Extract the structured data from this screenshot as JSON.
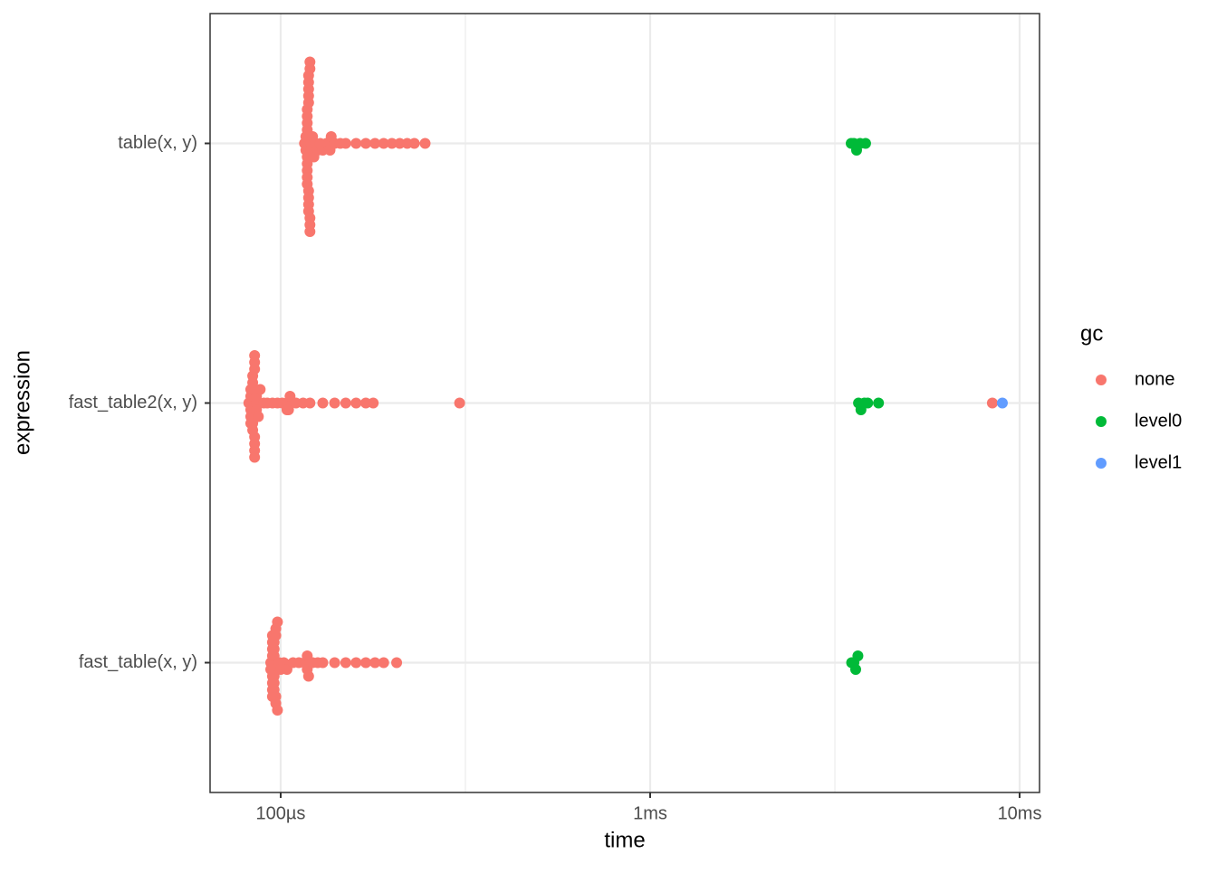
{
  "chart_data": {
    "type": "scatter",
    "x_label": "time",
    "y_label": "expression",
    "categories": [
      "table(x, y)",
      "fast_table2(x, y)",
      "fast_table(x, y)"
    ],
    "xlim": [
      64.4,
      11320
    ],
    "log_x": true,
    "xticks": [
      {
        "value": 100,
        "label": "100µs"
      },
      {
        "value": 1000,
        "label": "1ms"
      },
      {
        "value": 10000,
        "label": "10ms"
      }
    ],
    "grid": true,
    "legend_title": "gc",
    "legend_position": "right",
    "series": [
      {
        "name": "none",
        "color": "#F8766D",
        "values": [
          [
            116,
            117,
            117,
            117,
            118,
            118,
            118,
            118,
            118,
            118,
            118,
            118,
            118,
            119,
            119,
            119,
            119,
            119,
            119,
            119,
            119,
            119,
            120,
            120,
            120,
            120,
            120,
            121,
            121,
            122,
            123,
            124,
            126,
            128,
            130,
            133,
            136,
            136,
            137,
            140,
            145,
            150,
            160,
            170,
            180,
            190,
            200,
            210,
            220,
            230,
            246
          ],
          [
            82,
            83,
            83,
            83,
            83,
            83,
            84,
            84,
            84,
            84,
            84,
            84,
            84,
            84,
            84,
            85,
            85,
            85,
            85,
            85,
            85,
            85,
            86,
            86,
            86,
            87,
            88,
            90,
            92,
            95,
            98,
            101,
            104,
            104,
            105,
            105,
            106,
            110,
            115,
            120,
            130,
            140,
            150,
            160,
            170,
            178,
            305,
            8437
          ],
          [
            94,
            94,
            95,
            95,
            95,
            95,
            95,
            95,
            95,
            95,
            96,
            96,
            96,
            96,
            96,
            96,
            96,
            96,
            97,
            97,
            97,
            97,
            98,
            98,
            99,
            100,
            102,
            104,
            108,
            112,
            116,
            117,
            118,
            118,
            119,
            122,
            126,
            130,
            140,
            150,
            160,
            170,
            180,
            190,
            206
          ]
        ]
      },
      {
        "name": "level0",
        "color": "#00BA38",
        "values": [
          [
            3500,
            3560,
            3620,
            3700,
            3829
          ],
          [
            3664,
            3720,
            3800,
            3880,
            4150
          ],
          [
            3510,
            3560,
            3600,
            3650
          ]
        ]
      },
      {
        "name": "level1",
        "color": "#619CFF",
        "values": [
          [],
          [
            8980
          ],
          []
        ]
      }
    ]
  }
}
